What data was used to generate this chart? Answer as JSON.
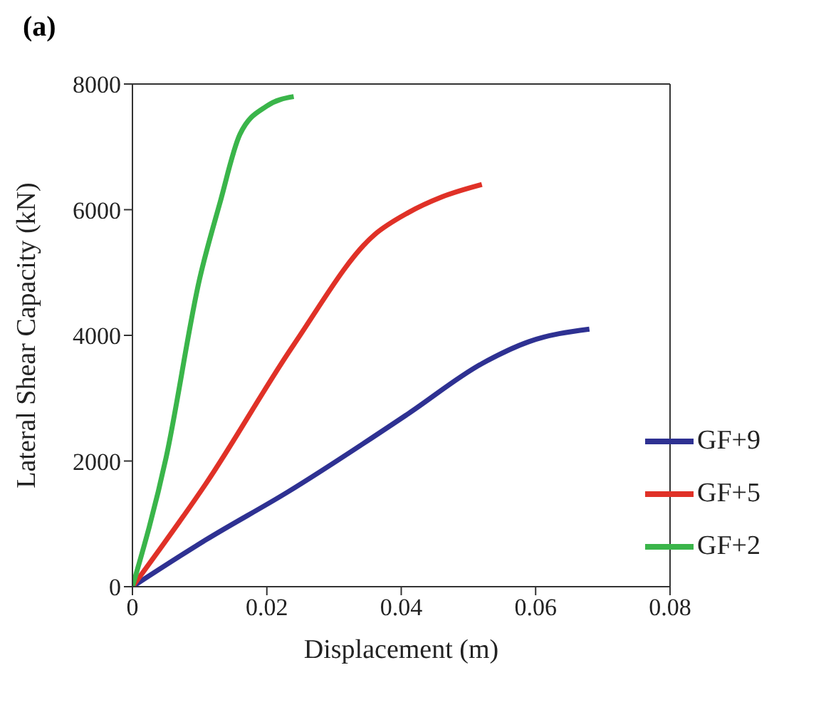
{
  "chart_data": {
    "type": "line",
    "title": "(a)",
    "xlabel": "Displacement (m)",
    "ylabel": "Lateral Shear Capacity (kN)",
    "xlim": [
      0,
      0.08
    ],
    "xticks": [
      0,
      0.02,
      0.04,
      0.06,
      0.08
    ],
    "ylim": [
      0,
      8000
    ],
    "yticks": [
      0,
      2000,
      4000,
      6000,
      8000
    ],
    "grid": false,
    "legend": "bottom right",
    "marker": "none",
    "line_style": "solid",
    "series": [
      {
        "name": "GF+9",
        "color": "#2e3192",
        "x": [
          0,
          0.011,
          0.023,
          0.041,
          0.052,
          0.059,
          0.068
        ],
        "values": [
          0,
          750,
          1500,
          2750,
          3550,
          3900,
          4100
        ]
      },
      {
        "name": "GF+5",
        "color": "#e03127",
        "x": [
          0,
          0.011,
          0.024,
          0.036,
          0.041,
          0.046,
          0.052
        ],
        "values": [
          0,
          1650,
          3850,
          5600,
          5950,
          6200,
          6400
        ]
      },
      {
        "name": "GF+2",
        "color": "#3ab54a",
        "x": [
          0,
          0.005,
          0.01,
          0.013,
          0.016,
          0.02,
          0.024
        ],
        "values": [
          0,
          2050,
          4900,
          6100,
          7200,
          7650,
          7800
        ]
      }
    ]
  }
}
